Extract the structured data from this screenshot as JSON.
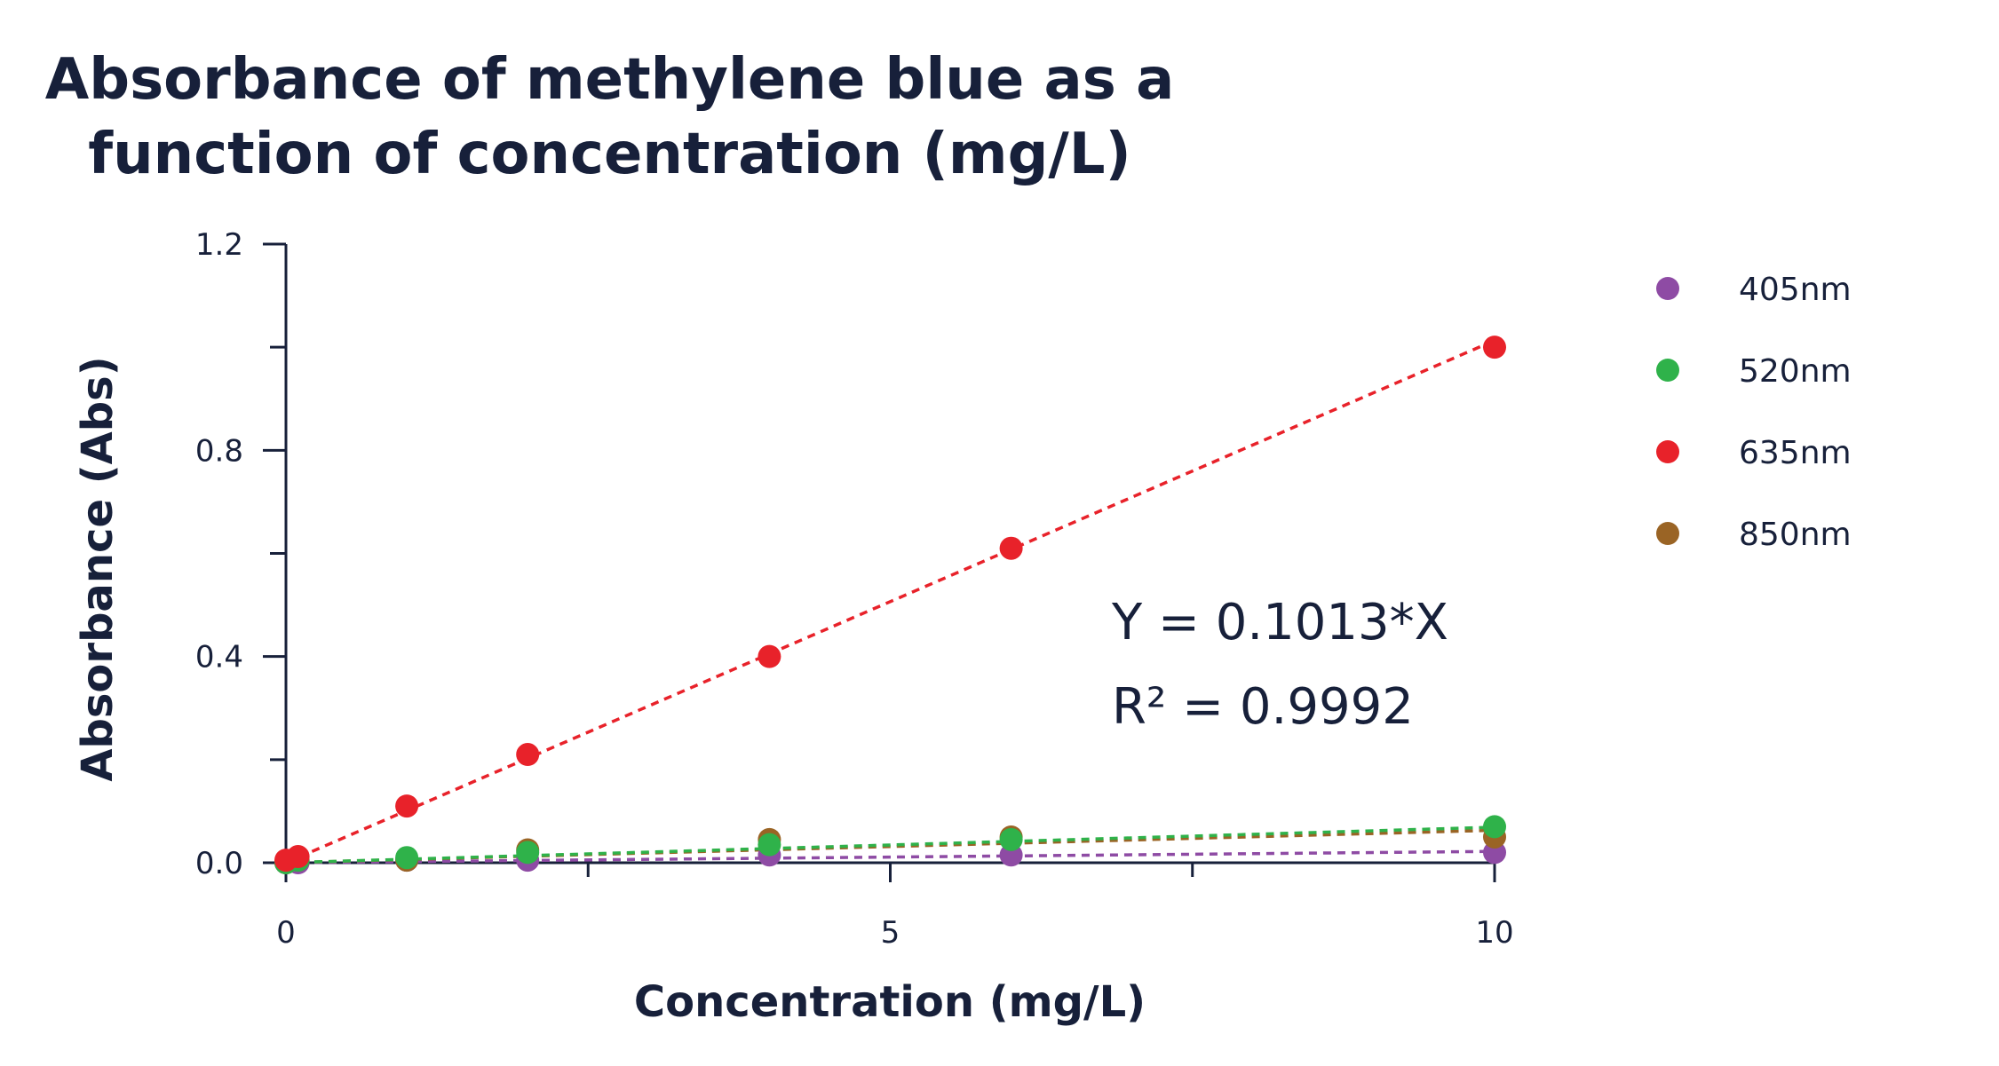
{
  "chart_data": {
    "type": "scatter",
    "title_lines": [
      "Absorbance of methylene blue as a",
      "function of concentration (mg/L)"
    ],
    "xlabel": "Concentration (mg/L)",
    "ylabel": "Absorbance (Abs)",
    "xlim": [
      0,
      10
    ],
    "ylim": [
      0,
      1.2
    ],
    "x_ticks": [
      0,
      5,
      10
    ],
    "x_tick_labels": [
      "0",
      "5",
      "10"
    ],
    "x_minor_ticks": [
      2.5,
      7.5
    ],
    "y_ticks": [
      0,
      0.4,
      0.8,
      1.2
    ],
    "y_tick_labels": [
      "0.0",
      "0.4",
      "0.8",
      "1.2"
    ],
    "y_minor_ticks": [
      0.2,
      0.6,
      1.0
    ],
    "grid": false,
    "legend_position": "right",
    "series": [
      {
        "name": "405nm",
        "color": "#8e4ba4",
        "x": [
          0,
          0.1,
          1,
          2,
          4,
          6,
          10
        ],
        "y": [
          0.0,
          0.0,
          0.005,
          0.005,
          0.015,
          0.015,
          0.02
        ],
        "fit_slope": 0.0022
      },
      {
        "name": "520nm",
        "color": "#2fb24a",
        "x": [
          0,
          0.1,
          1,
          2,
          4,
          6,
          10
        ],
        "y": [
          0.0,
          0.005,
          0.01,
          0.02,
          0.035,
          0.045,
          0.07
        ],
        "fit_slope": 0.0069
      },
      {
        "name": "635nm",
        "color": "#e8222a",
        "x": [
          0,
          0.1,
          1,
          2,
          4,
          6,
          10
        ],
        "y": [
          0.005,
          0.012,
          0.11,
          0.21,
          0.4,
          0.61,
          1.0
        ],
        "fit_slope": 0.1013
      },
      {
        "name": "850nm",
        "color": "#9a6425",
        "x": [
          0,
          0.1,
          1,
          2,
          4,
          6,
          10
        ],
        "y": [
          0.0,
          0.005,
          0.005,
          0.025,
          0.045,
          0.05,
          0.05
        ],
        "fit_slope": 0.0063
      }
    ],
    "annotations": {
      "equation": "Y = 0.1013*X",
      "r2": "R² = 0.9992"
    }
  }
}
